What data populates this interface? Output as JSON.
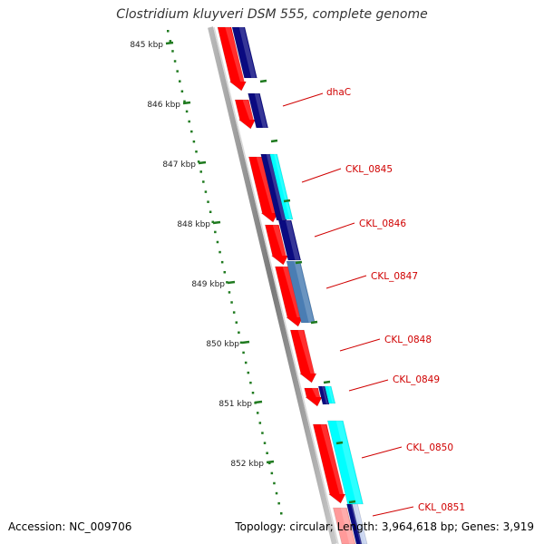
{
  "title": "Clostridium kluyveri DSM 555, complete genome",
  "footer": {
    "accession": "Accession: NC_009706",
    "summary": "Topology: circular; Length: 3,964,618 bp; Genes: 3,919"
  },
  "scale_labels": [
    "845 kbp",
    "846 kbp",
    "847 kbp",
    "848 kbp",
    "849 kbp",
    "850 kbp",
    "851 kbp",
    "852 kbp"
  ],
  "gene_labels": [
    "dhaC",
    "CKL_0845",
    "CKL_0846",
    "CKL_0847",
    "CKL_0848",
    "CKL_0849",
    "CKL_0850",
    "CKL_0851"
  ],
  "colors": {
    "cds": "#ff0000",
    "navy": "#0a0a80",
    "cyan": "#00ffff",
    "steel": "#4a7db3",
    "tick": "#1f7a1f",
    "label": "#d00000",
    "backbone": "#8c8c8c"
  }
}
